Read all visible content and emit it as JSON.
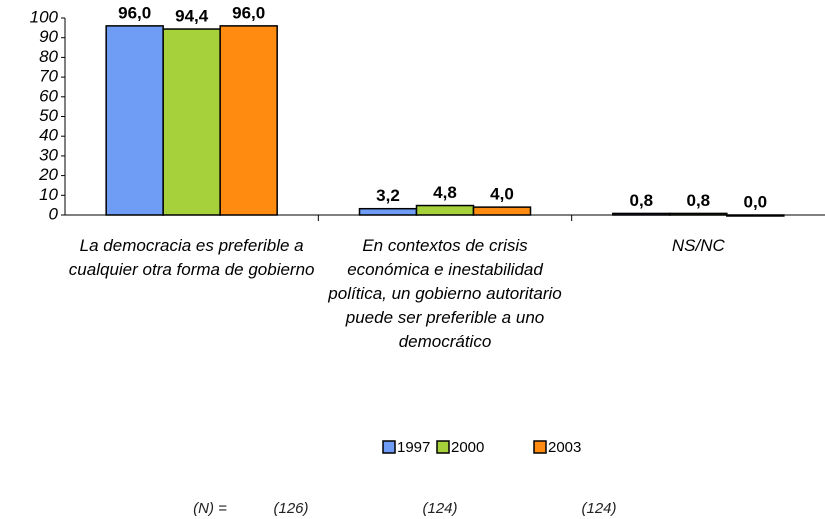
{
  "chart_data": {
    "type": "bar",
    "categories": [
      "La democracia es preferible a cualquier otra forma de gobierno",
      "En contextos de crisis económica e inestabilidad política, un gobierno autoritario puede ser preferible a uno democrático",
      "NS/NC"
    ],
    "series": [
      {
        "name": "1997",
        "color": "#6f9cf5",
        "values": [
          96.0,
          3.2,
          0.8
        ],
        "value_labels": [
          "96,0",
          "3,2",
          "0,8"
        ]
      },
      {
        "name": "2000",
        "color": "#a6d13a",
        "values": [
          94.4,
          4.8,
          0.8
        ],
        "value_labels": [
          "94,4",
          "4,8",
          "0,8"
        ]
      },
      {
        "name": "2003",
        "color": "#ff8c10",
        "values": [
          96.0,
          4.0,
          0.0
        ],
        "value_labels": [
          "96,0",
          "4,0",
          "0,0"
        ]
      }
    ],
    "ylim": [
      0,
      100
    ],
    "yticks": [
      0,
      10,
      20,
      30,
      40,
      50,
      60,
      70,
      80,
      90,
      100
    ],
    "grid": false,
    "legend": "bottom"
  },
  "footnote": {
    "label": "(N) =",
    "counts": [
      "(126)",
      "(124)",
      "(124)"
    ]
  }
}
